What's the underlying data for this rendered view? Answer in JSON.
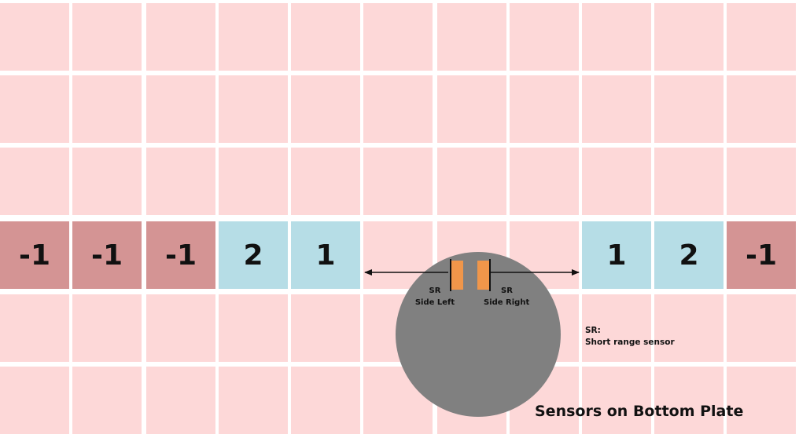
{
  "grid": {
    "rows": 6,
    "columns": 11,
    "sensor_row": 3,
    "background_color": "#fdd8d8",
    "negative_color": "#d49494",
    "positive_color": "#b6dde6",
    "sensor_row_cells": [
      {
        "column": 0,
        "value": "-1",
        "kind": "negative"
      },
      {
        "column": 1,
        "value": "-1",
        "kind": "negative"
      },
      {
        "column": 2,
        "value": "-1",
        "kind": "negative"
      },
      {
        "column": 3,
        "value": "2",
        "kind": "positive"
      },
      {
        "column": 4,
        "value": "1",
        "kind": "positive"
      },
      {
        "column": 8,
        "value": "1",
        "kind": "positive"
      },
      {
        "column": 9,
        "value": "2",
        "kind": "positive"
      },
      {
        "column": 10,
        "value": "-1",
        "kind": "negative"
      }
    ]
  },
  "robot": {
    "body_color": "#808080",
    "sensor_color": "#f0964a",
    "sensors": [
      {
        "name_line1": "SR",
        "name_line2": "Side Left",
        "direction": "left"
      },
      {
        "name_line1": "SR",
        "name_line2": "Side Right",
        "direction": "right"
      }
    ]
  },
  "legend": {
    "line1": "SR:",
    "line2": "Short range sensor"
  },
  "caption": "Sensors on Bottom Plate"
}
